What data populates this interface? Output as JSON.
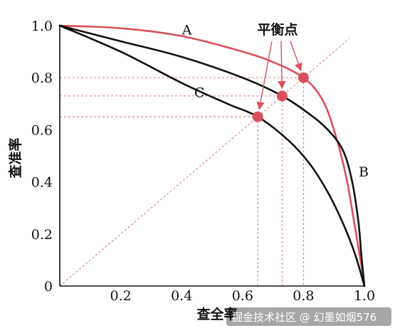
{
  "chart_data": {
    "type": "line",
    "title": "",
    "xlabel": "查全率",
    "ylabel": "查准率",
    "xlim": [
      0,
      1
    ],
    "ylim": [
      0,
      1
    ],
    "x_ticks": [
      {
        "v": 0.2,
        "t": "0.2"
      },
      {
        "v": 0.4,
        "t": "0.4"
      },
      {
        "v": 0.6,
        "t": "0.6"
      },
      {
        "v": 0.8,
        "t": "0.8"
      },
      {
        "v": 1.0,
        "t": "1.0"
      }
    ],
    "y_ticks": [
      {
        "v": 0,
        "t": "0"
      },
      {
        "v": 0.2,
        "t": "0.2"
      },
      {
        "v": 0.4,
        "t": "0.4"
      },
      {
        "v": 0.6,
        "t": "0.6"
      },
      {
        "v": 0.8,
        "t": "0.8"
      },
      {
        "v": 1.0,
        "t": "1.0"
      }
    ],
    "series": [
      {
        "name": "A",
        "color": "#d9505c",
        "x": [
          0,
          0.2,
          0.4,
          0.6,
          0.7,
          0.8,
          0.86,
          0.9,
          0.94,
          0.97,
          0.99,
          1.0
        ],
        "y": [
          1.0,
          0.99,
          0.96,
          0.9,
          0.86,
          0.8,
          0.72,
          0.6,
          0.42,
          0.22,
          0.08,
          0.0
        ]
      },
      {
        "name": "B",
        "color": "#111111",
        "x": [
          0,
          0.2,
          0.4,
          0.6,
          0.73,
          0.82,
          0.88,
          0.93,
          0.96,
          0.98,
          0.99,
          1.0
        ],
        "y": [
          1.0,
          0.94,
          0.88,
          0.8,
          0.73,
          0.66,
          0.6,
          0.52,
          0.4,
          0.25,
          0.12,
          0.0
        ]
      },
      {
        "name": "C",
        "color": "#111111",
        "x": [
          0,
          0.2,
          0.4,
          0.55,
          0.65,
          0.75,
          0.82,
          0.88,
          0.93,
          0.97,
          1.0
        ],
        "y": [
          1.0,
          0.9,
          0.78,
          0.7,
          0.65,
          0.56,
          0.47,
          0.36,
          0.24,
          0.12,
          0.0
        ]
      }
    ],
    "break_even": {
      "label": "平衡点",
      "points": [
        {
          "x": 0.65,
          "y": 0.65
        },
        {
          "x": 0.73,
          "y": 0.73
        },
        {
          "x": 0.8,
          "y": 0.8
        }
      ]
    },
    "diagonal": true,
    "colors": {
      "highlight": "#d9505c",
      "guide": "#d98a8a",
      "axis": "#111111"
    }
  },
  "watermark": "掘金技术社区 @ 幻墨如烟576"
}
